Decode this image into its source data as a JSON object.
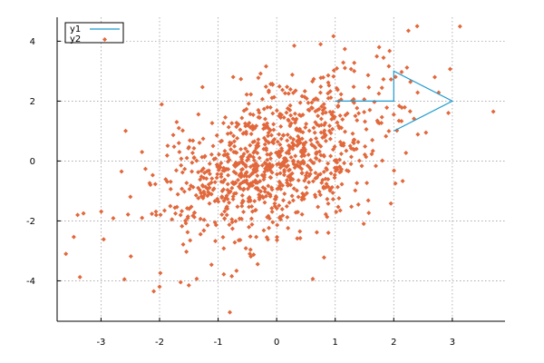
{
  "chart_data": {
    "type": "scatter",
    "xlim": [
      -3.75,
      3.9
    ],
    "ylim": [
      -5.35,
      4.8
    ],
    "x_ticks": [
      -3,
      -2,
      -1,
      0,
      1,
      2,
      3
    ],
    "y_ticks": [
      -4,
      -2,
      0,
      2,
      4
    ],
    "x_tick_labels": [
      "-3",
      "-2",
      "-1",
      "0",
      "1",
      "2",
      "3"
    ],
    "y_tick_labels": [
      "-4",
      "-2",
      "0",
      "2",
      "4"
    ],
    "grid": true,
    "legend_position": "top-left",
    "series": [
      {
        "name": "y1",
        "type": "line",
        "color": "#1f9bcf",
        "x": [
          1,
          2,
          2,
          3,
          2
        ],
        "y": [
          2,
          2,
          3,
          2,
          1
        ]
      },
      {
        "name": "y2",
        "type": "scatter",
        "color": "#e2683c",
        "marker": "diamond",
        "point_count": 1000,
        "x_mean": 0.0,
        "x_sd": 1.0,
        "y_mean": 0.0,
        "y_sd": 1.4,
        "correlation": 0.5,
        "x": [
          -3.6,
          -3.4,
          -3.3,
          -2.6,
          -2.65,
          -2.3,
          -2.1,
          -2.0,
          -1.5,
          -0.8,
          2.25,
          2.4,
          2.0,
          3.7,
          2.7,
          0.3,
          0.75,
          1.75,
          2.55
        ],
        "y": [
          -3.1,
          -1.8,
          -1.75,
          -3.95,
          -0.35,
          0.3,
          -4.35,
          -4.2,
          -4.15,
          -5.05,
          4.35,
          4.5,
          1.55,
          1.65,
          2.8,
          3.85,
          3.9,
          3.8,
          0.95
        ]
      }
    ]
  }
}
